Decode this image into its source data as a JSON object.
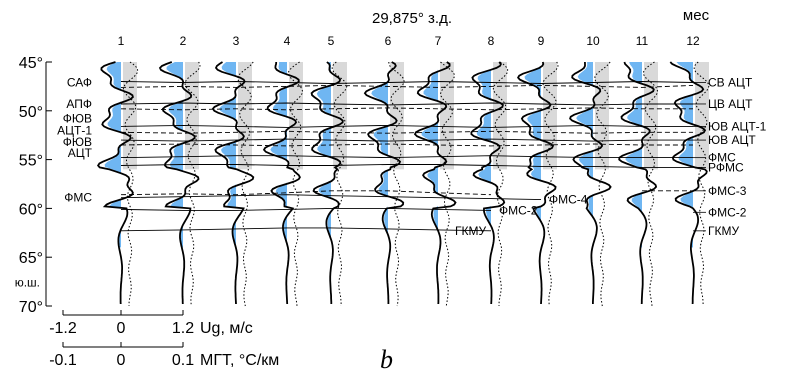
{
  "chart_data": {
    "type": "line",
    "title": "29,875° з.д.",
    "month_axis_label": "мес",
    "months": [
      "1",
      "2",
      "3",
      "4",
      "5",
      "6",
      "7",
      "8",
      "9",
      "10",
      "11",
      "12"
    ],
    "y_axis": {
      "ticks": [
        45,
        50,
        55,
        60,
        65,
        70
      ],
      "tick_labels": [
        "45°",
        "50°",
        "55°",
        "60°",
        "65°",
        "70°"
      ],
      "unit_label": "ю.ш.",
      "ylim": [
        45,
        70
      ],
      "inverted": true
    },
    "x_axis_ug": {
      "ticks": [
        "-1.2",
        "0",
        "1.2"
      ],
      "label": "Ug, м/с",
      "xlim": [
        -1.2,
        1.2
      ]
    },
    "x_axis_mgt": {
      "ticks": [
        "-0.1",
        "0",
        "0.1"
      ],
      "label": "МГТ, °С/км",
      "xlim": [
        -0.1,
        0.1
      ]
    },
    "panel_label": "b",
    "left_labels": [
      {
        "text": "САФ",
        "lat": 47.1
      },
      {
        "text": "АПФ",
        "lat": 49.3
      },
      {
        "text": "ФЮВ",
        "lat": 50.8
      },
      {
        "text": "АЦТ-1",
        "lat": 52.0
      },
      {
        "text": "ФЮВ",
        "lat": 53.2
      },
      {
        "text": "АЦТ",
        "lat": 54.3
      },
      {
        "text": "ФМС",
        "lat": 58.9
      }
    ],
    "right_labels": [
      {
        "text": "СВ АЦТ",
        "lat": 47.1
      },
      {
        "text": "ЦВ АЦТ",
        "lat": 49.3
      },
      {
        "text": "ЮВ АЦТ-1",
        "lat": 51.6
      },
      {
        "text": "ЮВ АЦТ",
        "lat": 53.0
      },
      {
        "text": "ФМС",
        "lat": 54.8
      },
      {
        "text": "РФМС",
        "lat": 55.8
      },
      {
        "text": "ФМС-3",
        "lat": 58.2
      },
      {
        "text": "ФМС-2",
        "lat": 60.4
      },
      {
        "text": "ГКМУ",
        "lat": 62.3
      }
    ],
    "inner_labels": [
      {
        "text": "ФМС-4",
        "lat": 59.1
      },
      {
        "text": "ФМС-2",
        "lat": 60.2
      },
      {
        "text": "ГКМУ",
        "lat": 62.3
      }
    ],
    "front_lines": [
      {
        "name": "САФ / СВ АЦТ",
        "style": "solid",
        "lats": [
          47.0,
          47.1,
          47.0,
          47.1,
          47.2,
          47.1,
          47.0,
          47.1,
          47.2,
          47.1,
          47.0,
          47.1
        ]
      },
      {
        "name": "САФ dashed",
        "style": "dashed",
        "lats": [
          47.6,
          47.5,
          47.6,
          47.5,
          47.4,
          47.5,
          47.6,
          47.5,
          47.4,
          47.5,
          47.6,
          47.4
        ]
      },
      {
        "name": "АПФ / ЦВ АЦТ",
        "style": "solid",
        "lats": [
          49.3,
          49.2,
          49.3,
          49.2,
          49.3,
          49.4,
          49.3,
          49.2,
          49.3,
          49.4,
          49.3,
          49.3
        ]
      },
      {
        "name": "АПФ dashed",
        "style": "dashed",
        "lats": [
          49.8,
          49.9,
          49.8,
          49.9,
          49.8,
          49.7,
          49.8,
          49.9,
          49.8,
          49.7,
          49.8,
          49.8
        ]
      },
      {
        "name": "ЮВ АЦТ-1",
        "style": "solid",
        "lats": [
          51.6,
          51.5,
          51.6,
          51.7,
          51.6,
          51.5,
          51.6,
          51.7,
          51.6,
          51.5,
          51.6,
          51.6
        ]
      },
      {
        "name": "ЮВ АЦТ-1 dashed",
        "style": "dashed",
        "lats": [
          52.2,
          52.3,
          52.2,
          52.1,
          52.2,
          52.3,
          52.2,
          52.1,
          52.2,
          52.3,
          52.2,
          52.2
        ]
      },
      {
        "name": "ЮВ АЦТ",
        "style": "solid",
        "lats": [
          53.0,
          53.1,
          53.0,
          52.9,
          53.0,
          53.1,
          53.0,
          52.9,
          53.0,
          53.1,
          53.0,
          53.0
        ]
      },
      {
        "name": "ЮВ АЦТ dashed",
        "style": "dashed",
        "lats": [
          53.5,
          53.4,
          53.5,
          53.6,
          53.5,
          53.4,
          53.5,
          53.6,
          53.5,
          53.4,
          53.5,
          53.5
        ]
      },
      {
        "name": "ФМС",
        "style": "solid",
        "lats": [
          54.8,
          54.7,
          54.6,
          54.6,
          54.7,
          54.8,
          54.7,
          54.6,
          54.7,
          54.8,
          54.8,
          54.8
        ]
      },
      {
        "name": "РФМС",
        "style": "solid",
        "lats": [
          55.6,
          55.5,
          55.5,
          55.6,
          55.6,
          55.5,
          55.5,
          55.6,
          55.7,
          55.7,
          55.8,
          55.8
        ]
      },
      {
        "name": "ФМС dashed",
        "style": "dashed",
        "lats": [
          58.6,
          58.5,
          58.6,
          58.4,
          58.2,
          58.2,
          58.4,
          58.6,
          null,
          null,
          58.2,
          58.2
        ]
      },
      {
        "name": "ФМС-4",
        "style": "solid",
        "lats": [
          58.9,
          58.8,
          58.7,
          58.6,
          58.7,
          58.8,
          58.9,
          59.0,
          59.1,
          null,
          null,
          null
        ]
      },
      {
        "name": "ФМС-2",
        "style": "solid",
        "lats": [
          60.1,
          60.2,
          60.2,
          60.1,
          60.0,
          60.0,
          60.1,
          60.2,
          null,
          null,
          null,
          60.4
        ]
      },
      {
        "name": "ГКМУ",
        "style": "solid",
        "lats": [
          62.3,
          62.2,
          62.1,
          62.0,
          62.0,
          62.1,
          62.2,
          62.3,
          null,
          null,
          null,
          62.3
        ]
      }
    ],
    "colors": {
      "ug_positive_fill": "#6fb6f2",
      "mgt_fill": "#cfcfcf",
      "profile_line": "#000000"
    }
  }
}
